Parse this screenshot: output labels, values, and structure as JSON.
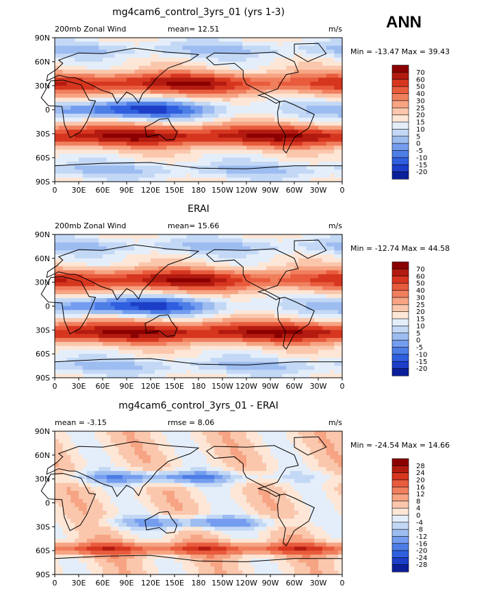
{
  "season": "ANN",
  "chart_data": [
    {
      "type": "heatmap",
      "title": "mg4cam6_control_3yrs_01 (yrs 1-3)",
      "left_label": "200mb  Zonal Wind",
      "center_label": "mean=   12.51",
      "units": "m/s",
      "minmax": "Min = -13.47 Max =  39.43",
      "min": -13.47,
      "max": 39.43,
      "x_ticks": [
        "0",
        "30E",
        "60E",
        "90E",
        "120E",
        "150E",
        "180",
        "150W",
        "120W",
        "90W",
        "60W",
        "30W",
        "0"
      ],
      "y_ticks": [
        "90N",
        "60N",
        "30N",
        "0",
        "30S",
        "60S",
        "90S"
      ],
      "colorbar_levels": [
        "70",
        "60",
        "50",
        "40",
        "30",
        "25",
        "20",
        "15",
        "10",
        "5",
        "0",
        "-5",
        "-10",
        "-15",
        "-20"
      ],
      "colorbar_colors": [
        "#8b0000",
        "#b31b10",
        "#d6361f",
        "#e85b3d",
        "#f07f5e",
        "#f6a483",
        "#fac7ad",
        "#fde6d6",
        "#e4eefa",
        "#c3d8f5",
        "#9dbcf0",
        "#749def",
        "#4d7ee6",
        "#2f5fdf",
        "#1c3ec8",
        "#0c1f9a"
      ]
    },
    {
      "type": "heatmap",
      "title": "ERAI",
      "left_label": "200mb  Zonal Wind",
      "center_label": "mean=   15.66",
      "units": "m/s",
      "minmax": "Min = -12.74 Max =  44.58",
      "min": -12.74,
      "max": 44.58,
      "x_ticks": [
        "0",
        "30E",
        "60E",
        "90E",
        "120E",
        "150E",
        "180",
        "150W",
        "120W",
        "90W",
        "60W",
        "30W",
        "0"
      ],
      "y_ticks": [
        "90N",
        "60N",
        "30N",
        "0",
        "30S",
        "60S",
        "90S"
      ],
      "colorbar_levels": [
        "70",
        "60",
        "50",
        "40",
        "30",
        "25",
        "20",
        "15",
        "10",
        "5",
        "0",
        "-5",
        "-10",
        "-15",
        "-20"
      ],
      "colorbar_colors": [
        "#8b0000",
        "#b31b10",
        "#d6361f",
        "#e85b3d",
        "#f07f5e",
        "#f6a483",
        "#fac7ad",
        "#fde6d6",
        "#e4eefa",
        "#c3d8f5",
        "#9dbcf0",
        "#749def",
        "#4d7ee6",
        "#2f5fdf",
        "#1c3ec8",
        "#0c1f9a"
      ]
    },
    {
      "type": "heatmap",
      "title": "mg4cam6_control_3yrs_01 - ERAI",
      "left_label": "mean =   -3.15",
      "center_label": "rmse =    8.06",
      "units": "m/s",
      "minmax": "Min = -24.54 Max =  14.66",
      "min": -24.54,
      "max": 14.66,
      "x_ticks": [
        "0",
        "30E",
        "60E",
        "90E",
        "120E",
        "150E",
        "180",
        "150W",
        "120W",
        "90W",
        "60W",
        "30W",
        "0"
      ],
      "y_ticks": [
        "90N",
        "60N",
        "30N",
        "0",
        "30S",
        "60S",
        "90S"
      ],
      "colorbar_levels": [
        "28",
        "24",
        "20",
        "16",
        "12",
        "8",
        "4",
        "0",
        "-4",
        "-8",
        "-12",
        "-16",
        "-20",
        "-24",
        "-28"
      ],
      "colorbar_colors": [
        "#8b0000",
        "#b31b10",
        "#d6361f",
        "#e85b3d",
        "#f07f5e",
        "#f6a483",
        "#fac7ad",
        "#fde6d6",
        "#e4eefa",
        "#c3d8f5",
        "#9dbcf0",
        "#749def",
        "#4d7ee6",
        "#2f5fdf",
        "#1c3ec8",
        "#0c1f9a"
      ]
    }
  ]
}
